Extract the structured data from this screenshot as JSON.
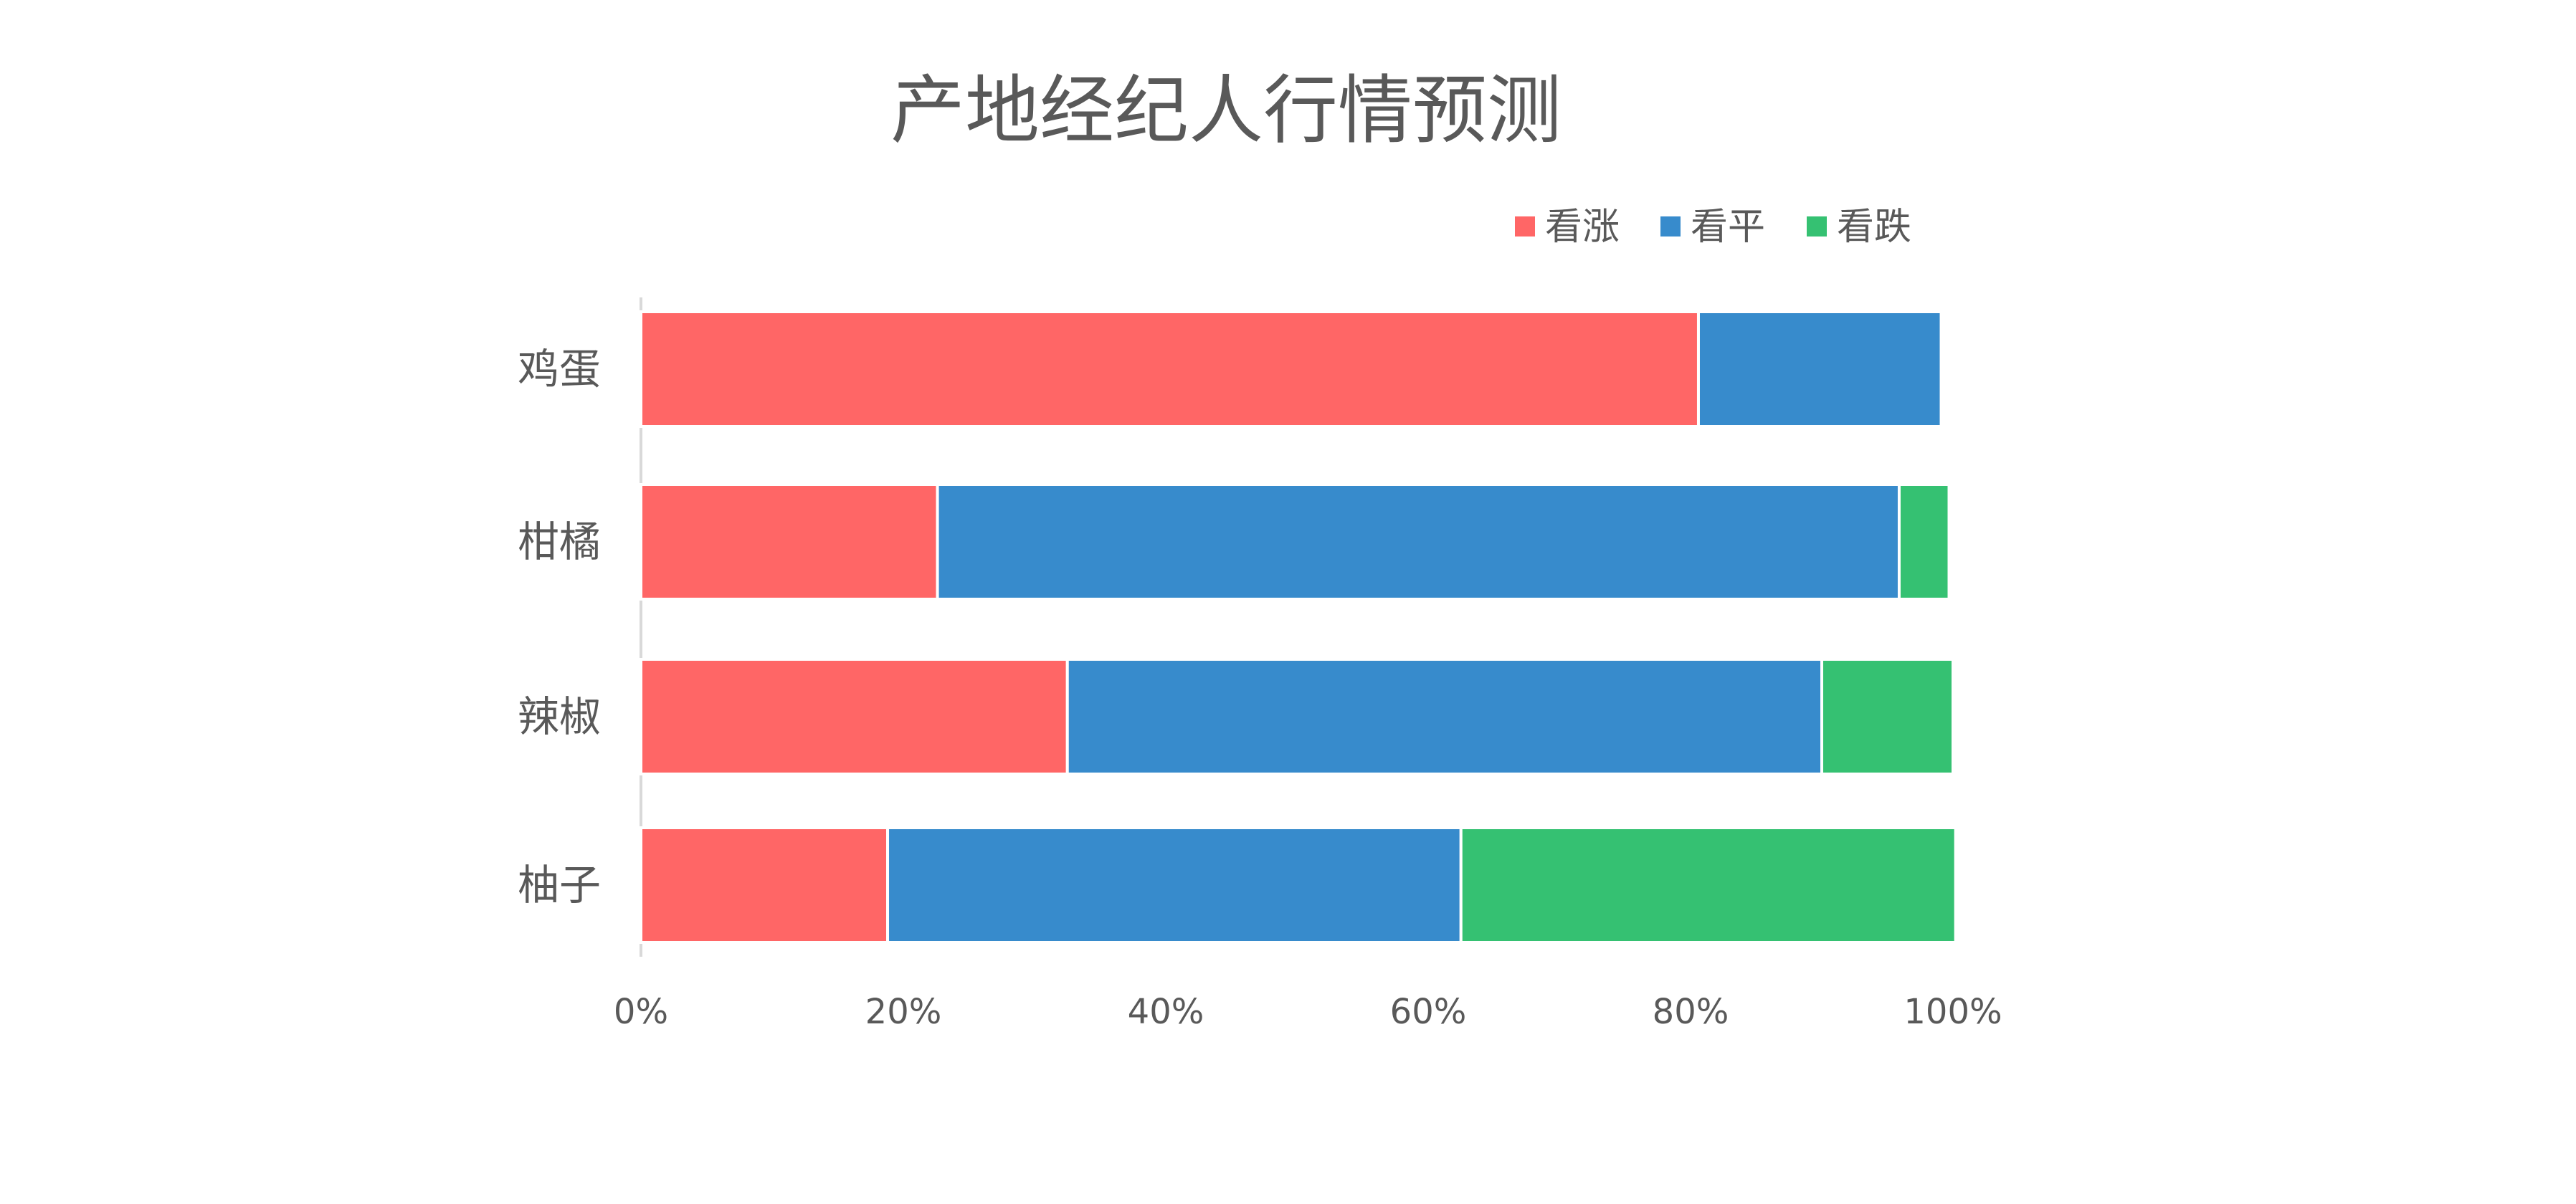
{
  "chart_data": {
    "type": "bar",
    "orientation": "horizontal",
    "stacked": true,
    "title": "产地经纪人行情预测",
    "categories": [
      "鸡蛋",
      "柑橘",
      "辣椒",
      "柚子"
    ],
    "series": [
      {
        "name": "看涨",
        "color": "#ff6666",
        "values": [
          80.6,
          22.6,
          32.5,
          18.8
        ]
      },
      {
        "name": "看平",
        "color": "#378bcc",
        "values": [
          18.5,
          73.3,
          57.5,
          43.7
        ]
      },
      {
        "name": "看跌",
        "color": "#35c172",
        "values": [
          0,
          3.8,
          10.0,
          37.7
        ]
      }
    ],
    "xlim": [
      0,
      100
    ],
    "x_ticks": [
      "0%",
      "20%",
      "40%",
      "60%",
      "80%",
      "100%"
    ],
    "legend_position": "top-right",
    "grid": false
  }
}
